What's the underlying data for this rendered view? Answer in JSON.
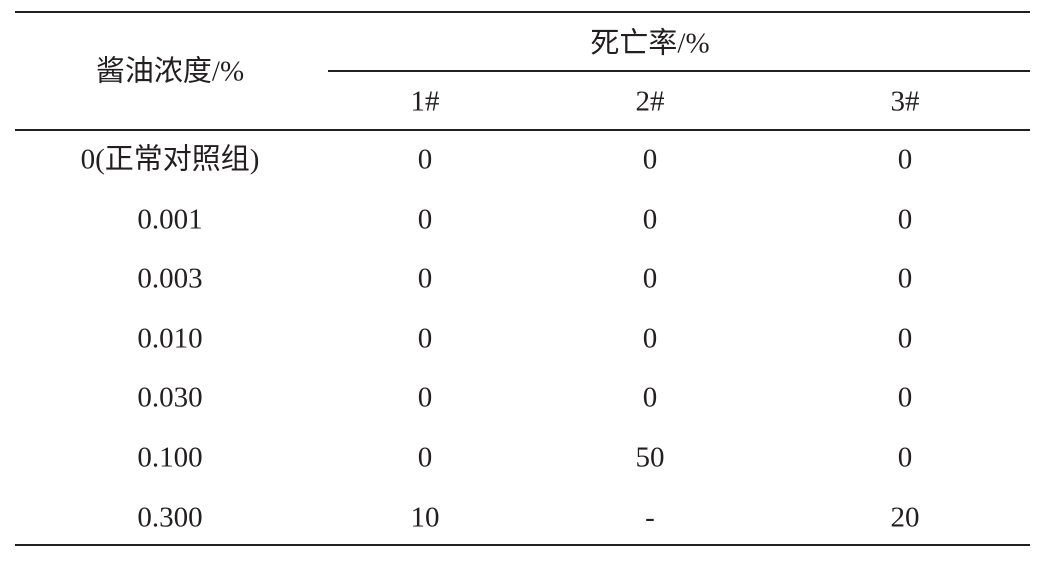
{
  "table": {
    "row_header": "酱油浓度/%",
    "group_header": "死亡率/%",
    "columns": [
      "1#",
      "2#",
      "3#"
    ],
    "rows": [
      {
        "label": "0(正常对照组)",
        "values": [
          "0",
          "0",
          "0"
        ]
      },
      {
        "label": "0.001",
        "values": [
          "0",
          "0",
          "0"
        ]
      },
      {
        "label": "0.003",
        "values": [
          "0",
          "0",
          "0"
        ]
      },
      {
        "label": "0.010",
        "values": [
          "0",
          "0",
          "0"
        ]
      },
      {
        "label": "0.030",
        "values": [
          "0",
          "0",
          "0"
        ]
      },
      {
        "label": "0.100",
        "values": [
          "0",
          "50",
          "0"
        ]
      },
      {
        "label": "0.300",
        "values": [
          "10",
          "-",
          "20"
        ]
      }
    ]
  }
}
